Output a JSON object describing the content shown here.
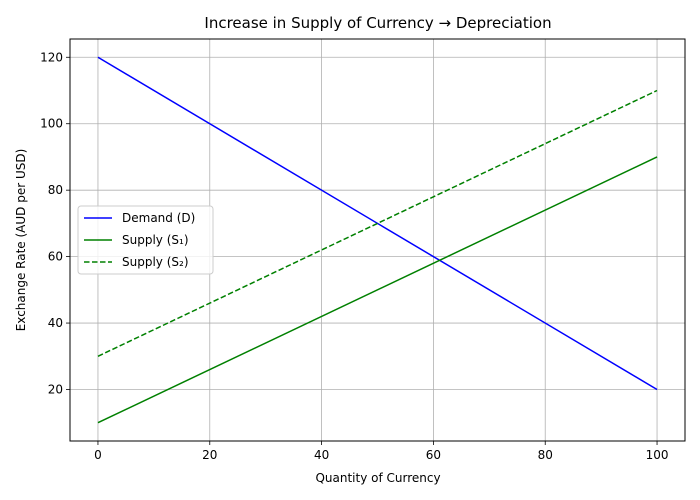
{
  "chart_data": {
    "type": "line",
    "title": "Increase in Supply of Currency → Depreciation",
    "xlabel": "Quantity of Currency",
    "ylabel": "Exchange Rate (AUD per USD)",
    "xlim": [
      -5,
      105
    ],
    "ylim": [
      4.5,
      125.5
    ],
    "xticks": [
      0,
      20,
      40,
      60,
      80,
      100
    ],
    "yticks": [
      20,
      40,
      60,
      80,
      100,
      120
    ],
    "grid": true,
    "legend_position": "center-left",
    "series": [
      {
        "name": "Demand (D)",
        "x": [
          0,
          100
        ],
        "y": [
          120,
          20
        ],
        "color": "#0000ff",
        "dash": "solid"
      },
      {
        "name": "Supply (S₁)",
        "x": [
          0,
          100
        ],
        "y": [
          10,
          90
        ],
        "color": "#008000",
        "dash": "solid"
      },
      {
        "name": "Supply (S₂)",
        "x": [
          0,
          100
        ],
        "y": [
          30,
          110
        ],
        "color": "#008000",
        "dash": "dashed"
      }
    ]
  }
}
